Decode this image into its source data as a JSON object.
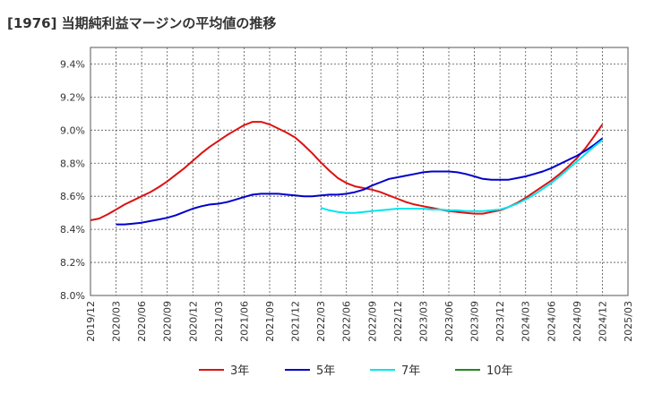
{
  "chart_data": {
    "type": "line",
    "title": "[1976]  当期純利益マージンの平均値の推移",
    "xlabel": "",
    "ylabel": "",
    "grid": true,
    "legend_position": "bottom",
    "ylim": [
      8.0,
      9.5
    ],
    "yticks": [
      "8.0%",
      "8.2%",
      "8.4%",
      "8.6%",
      "8.8%",
      "9.0%",
      "9.2%",
      "9.4%"
    ],
    "xticks": [
      "2019/12",
      "2020/03",
      "2020/06",
      "2020/09",
      "2020/12",
      "2021/03",
      "2021/06",
      "2021/09",
      "2021/12",
      "2022/03",
      "2022/06",
      "2022/09",
      "2022/12",
      "2023/03",
      "2023/06",
      "2023/09",
      "2023/12",
      "2024/03",
      "2024/06",
      "2024/09",
      "2024/12",
      "2025/03"
    ],
    "series": [
      {
        "name": "3年",
        "color": "#dd1111",
        "points": [
          [
            "2019/12",
            8.455
          ],
          [
            "2020/01",
            8.465
          ],
          [
            "2020/02",
            8.49
          ],
          [
            "2020/03",
            8.52
          ],
          [
            "2020/04",
            8.55
          ],
          [
            "2020/05",
            8.575
          ],
          [
            "2020/06",
            8.6
          ],
          [
            "2020/07",
            8.625
          ],
          [
            "2020/08",
            8.655
          ],
          [
            "2020/09",
            8.69
          ],
          [
            "2020/10",
            8.73
          ],
          [
            "2020/11",
            8.77
          ],
          [
            "2020/12",
            8.815
          ],
          [
            "2021/01",
            8.86
          ],
          [
            "2021/02",
            8.9
          ],
          [
            "2021/03",
            8.935
          ],
          [
            "2021/04",
            8.97
          ],
          [
            "2021/05",
            9.0
          ],
          [
            "2021/06",
            9.03
          ],
          [
            "2021/07",
            9.05
          ],
          [
            "2021/08",
            9.05
          ],
          [
            "2021/09",
            9.035
          ],
          [
            "2021/10",
            9.01
          ],
          [
            "2021/11",
            8.985
          ],
          [
            "2021/12",
            8.955
          ],
          [
            "2022/01",
            8.91
          ],
          [
            "2022/02",
            8.86
          ],
          [
            "2022/03",
            8.805
          ],
          [
            "2022/04",
            8.755
          ],
          [
            "2022/05",
            8.71
          ],
          [
            "2022/06",
            8.68
          ],
          [
            "2022/07",
            8.66
          ],
          [
            "2022/08",
            8.65
          ],
          [
            "2022/09",
            8.64
          ],
          [
            "2022/10",
            8.625
          ],
          [
            "2022/11",
            8.605
          ],
          [
            "2022/12",
            8.585
          ],
          [
            "2023/01",
            8.565
          ],
          [
            "2023/02",
            8.55
          ],
          [
            "2023/03",
            8.54
          ],
          [
            "2023/04",
            8.53
          ],
          [
            "2023/05",
            8.52
          ],
          [
            "2023/06",
            8.51
          ],
          [
            "2023/07",
            8.505
          ],
          [
            "2023/08",
            8.5
          ],
          [
            "2023/09",
            8.495
          ],
          [
            "2023/10",
            8.495
          ],
          [
            "2023/11",
            8.505
          ],
          [
            "2023/12",
            8.515
          ],
          [
            "2024/01",
            8.535
          ],
          [
            "2024/02",
            8.56
          ],
          [
            "2024/03",
            8.59
          ],
          [
            "2024/04",
            8.625
          ],
          [
            "2024/05",
            8.66
          ],
          [
            "2024/06",
            8.695
          ],
          [
            "2024/07",
            8.735
          ],
          [
            "2024/08",
            8.78
          ],
          [
            "2024/09",
            8.83
          ],
          [
            "2024/10",
            8.89
          ],
          [
            "2024/11",
            8.96
          ],
          [
            "2024/12",
            9.035
          ]
        ]
      },
      {
        "name": "5年",
        "color": "#0000cc",
        "points": [
          [
            "2020/03",
            8.43
          ],
          [
            "2020/04",
            8.43
          ],
          [
            "2020/05",
            8.435
          ],
          [
            "2020/06",
            8.44
          ],
          [
            "2020/07",
            8.45
          ],
          [
            "2020/08",
            8.46
          ],
          [
            "2020/09",
            8.47
          ],
          [
            "2020/10",
            8.485
          ],
          [
            "2020/11",
            8.505
          ],
          [
            "2020/12",
            8.525
          ],
          [
            "2021/01",
            8.54
          ],
          [
            "2021/02",
            8.55
          ],
          [
            "2021/03",
            8.555
          ],
          [
            "2021/04",
            8.565
          ],
          [
            "2021/05",
            8.58
          ],
          [
            "2021/06",
            8.595
          ],
          [
            "2021/07",
            8.61
          ],
          [
            "2021/08",
            8.615
          ],
          [
            "2021/09",
            8.615
          ],
          [
            "2021/10",
            8.615
          ],
          [
            "2021/11",
            8.61
          ],
          [
            "2021/12",
            8.605
          ],
          [
            "2022/01",
            8.6
          ],
          [
            "2022/02",
            8.6
          ],
          [
            "2022/03",
            8.605
          ],
          [
            "2022/04",
            8.61
          ],
          [
            "2022/05",
            8.61
          ],
          [
            "2022/06",
            8.615
          ],
          [
            "2022/07",
            8.625
          ],
          [
            "2022/08",
            8.64
          ],
          [
            "2022/09",
            8.665
          ],
          [
            "2022/10",
            8.685
          ],
          [
            "2022/11",
            8.705
          ],
          [
            "2022/12",
            8.715
          ],
          [
            "2023/01",
            8.725
          ],
          [
            "2023/02",
            8.735
          ],
          [
            "2023/03",
            8.745
          ],
          [
            "2023/04",
            8.75
          ],
          [
            "2023/05",
            8.75
          ],
          [
            "2023/06",
            8.75
          ],
          [
            "2023/07",
            8.745
          ],
          [
            "2023/08",
            8.735
          ],
          [
            "2023/09",
            8.72
          ],
          [
            "2023/10",
            8.705
          ],
          [
            "2023/11",
            8.7
          ],
          [
            "2023/12",
            8.7
          ],
          [
            "2024/01",
            8.7
          ],
          [
            "2024/02",
            8.71
          ],
          [
            "2024/03",
            8.72
          ],
          [
            "2024/04",
            8.735
          ],
          [
            "2024/05",
            8.75
          ],
          [
            "2024/06",
            8.77
          ],
          [
            "2024/07",
            8.795
          ],
          [
            "2024/08",
            8.82
          ],
          [
            "2024/09",
            8.845
          ],
          [
            "2024/10",
            8.875
          ],
          [
            "2024/11",
            8.91
          ],
          [
            "2024/12",
            8.95
          ]
        ]
      },
      {
        "name": "7年",
        "color": "#00e5ee",
        "points": [
          [
            "2022/03",
            8.53
          ],
          [
            "2022/04",
            8.515
          ],
          [
            "2022/05",
            8.505
          ],
          [
            "2022/06",
            8.5
          ],
          [
            "2022/07",
            8.5
          ],
          [
            "2022/08",
            8.505
          ],
          [
            "2022/09",
            8.51
          ],
          [
            "2022/10",
            8.515
          ],
          [
            "2022/11",
            8.52
          ],
          [
            "2022/12",
            8.525
          ],
          [
            "2023/01",
            8.525
          ],
          [
            "2023/02",
            8.525
          ],
          [
            "2023/03",
            8.525
          ],
          [
            "2023/04",
            8.52
          ],
          [
            "2023/05",
            8.52
          ],
          [
            "2023/06",
            8.515
          ],
          [
            "2023/07",
            8.515
          ],
          [
            "2023/08",
            8.51
          ],
          [
            "2023/09",
            8.51
          ],
          [
            "2023/10",
            8.51
          ],
          [
            "2023/11",
            8.515
          ],
          [
            "2023/12",
            8.52
          ],
          [
            "2024/01",
            8.535
          ],
          [
            "2024/02",
            8.555
          ],
          [
            "2024/03",
            8.58
          ],
          [
            "2024/04",
            8.61
          ],
          [
            "2024/05",
            8.645
          ],
          [
            "2024/06",
            8.68
          ],
          [
            "2024/07",
            8.72
          ],
          [
            "2024/08",
            8.765
          ],
          [
            "2024/09",
            8.81
          ],
          [
            "2024/10",
            8.855
          ],
          [
            "2024/11",
            8.9
          ],
          [
            "2024/12",
            8.94
          ]
        ]
      },
      {
        "name": "10年",
        "color": "#228822",
        "points": []
      }
    ]
  }
}
